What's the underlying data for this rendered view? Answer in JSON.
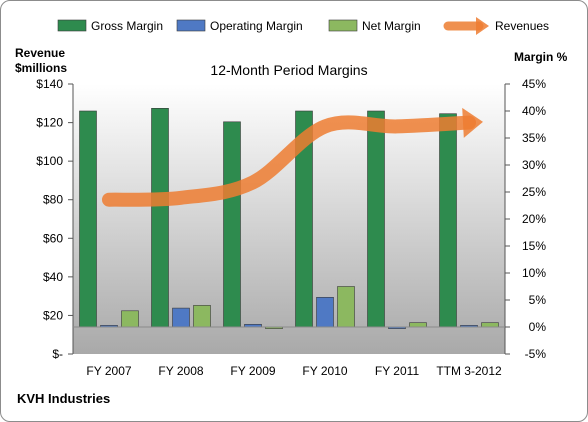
{
  "chart_data": {
    "type": "bar",
    "title": "12-Month Period Margins",
    "footer": "KVH Industries",
    "left_axis": {
      "label_line1": "Revenue",
      "label_line2": "$millions",
      "ylim": [
        0,
        140
      ],
      "ticks": [
        0,
        20,
        40,
        60,
        80,
        100,
        120,
        140
      ],
      "tick_labels": [
        "$-",
        "$20",
        "$40",
        "$60",
        "$80",
        "$100",
        "$120",
        "$140"
      ]
    },
    "right_axis": {
      "label": "Margin %",
      "ylim": [
        -5,
        45
      ],
      "ticks": [
        -5,
        0,
        5,
        10,
        15,
        20,
        25,
        30,
        35,
        40,
        45
      ],
      "tick_labels": [
        "-5%",
        "0%",
        "5%",
        "10%",
        "15%",
        "20%",
        "25%",
        "30%",
        "35%",
        "40%",
        "45%"
      ]
    },
    "categories": [
      "FY 2007",
      "FY 2008",
      "FY 2009",
      "FY 2010",
      "FY 2011",
      "TTM 3-2012"
    ],
    "series": [
      {
        "name": "Gross Margin",
        "axis": "right",
        "color": "#2e8b4e",
        "values": [
          40.0,
          40.5,
          38.0,
          40.0,
          40.0,
          39.5
        ]
      },
      {
        "name": "Operating Margin",
        "axis": "right",
        "color": "#4f79c4",
        "values": [
          0.3,
          3.5,
          0.5,
          5.5,
          -0.3,
          0.3
        ]
      },
      {
        "name": "Net Margin",
        "axis": "right",
        "color": "#8cb860",
        "values": [
          3.0,
          4.0,
          -0.3,
          7.5,
          0.8,
          0.8
        ]
      },
      {
        "name": "Revenues",
        "axis": "left",
        "type": "line",
        "color": "#ed7d31",
        "values": [
          80,
          81,
          89,
          118,
          118,
          120
        ]
      }
    ],
    "legend_position": "top",
    "grid": false
  }
}
